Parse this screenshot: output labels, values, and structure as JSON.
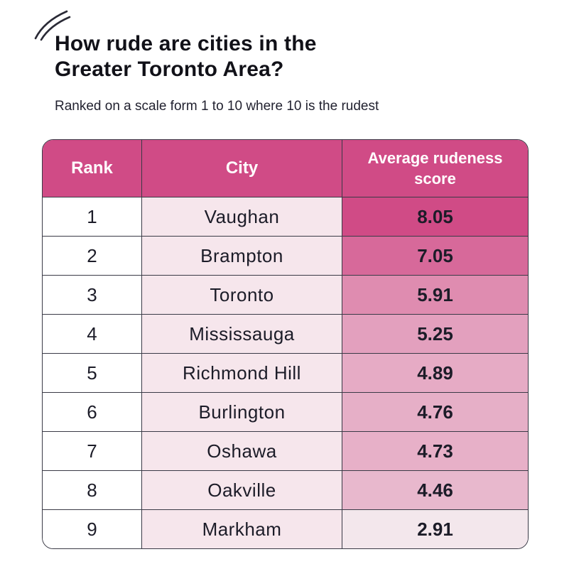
{
  "title_line1": "How rude are cities in the",
  "title_line2": "Greater Toronto Area?",
  "subtitle": "Ranked on a scale form 1 to 10 where 10 is the rudest",
  "colors": {
    "header_bg": "#d04b86",
    "city_col_bg": "#f6e6ec",
    "score_high": "#d04b86",
    "score_low": "#f3e7ec"
  },
  "chart_data": {
    "type": "table",
    "columns": [
      "Rank",
      "City",
      "Average rudeness score"
    ],
    "rows": [
      {
        "rank": "1",
        "city": "Vaughan",
        "score": "8.05"
      },
      {
        "rank": "2",
        "city": "Brampton",
        "score": "7.05"
      },
      {
        "rank": "3",
        "city": "Toronto",
        "score": "5.91"
      },
      {
        "rank": "4",
        "city": "Mississauga",
        "score": "5.25"
      },
      {
        "rank": "5",
        "city": "Richmond Hill",
        "score": "4.89"
      },
      {
        "rank": "6",
        "city": "Burlington",
        "score": "4.76"
      },
      {
        "rank": "7",
        "city": "Oshawa",
        "score": "4.73"
      },
      {
        "rank": "8",
        "city": "Oakville",
        "score": "4.46"
      },
      {
        "rank": "9",
        "city": "Markham",
        "score": "2.91"
      }
    ]
  }
}
